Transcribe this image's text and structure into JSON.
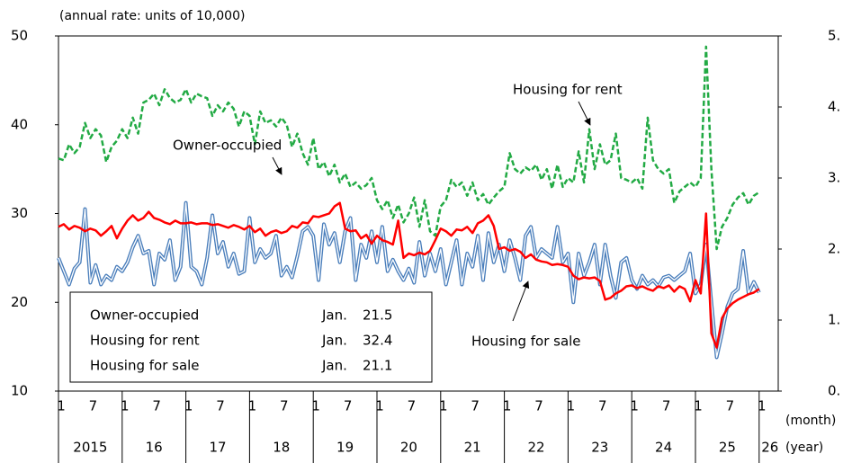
{
  "chart_data": {
    "type": "line",
    "axis_label": "(annual rate: units of 10,000)",
    "month_unit": "(month)",
    "year_unit": "(year)",
    "categories": [
      "1",
      null,
      null,
      null,
      null,
      null,
      "7",
      null,
      null,
      null,
      null,
      null,
      "1",
      null,
      null,
      null,
      null,
      null,
      "7",
      null,
      null,
      null,
      null,
      null,
      "1",
      null,
      null,
      null,
      null,
      null,
      "7",
      null,
      null,
      null,
      null,
      null,
      "1",
      null,
      null,
      null,
      null,
      null,
      "7",
      null,
      null,
      null,
      null,
      null,
      "1",
      null,
      null,
      null,
      null,
      null,
      "7",
      null,
      null,
      null,
      null,
      null,
      "1",
      null,
      null,
      null,
      null,
      null,
      "7",
      null,
      null,
      null,
      null,
      null,
      "1",
      null,
      null,
      null,
      null,
      null,
      "7",
      null,
      null,
      null,
      null,
      null,
      "1",
      null,
      null,
      null,
      null,
      null,
      "7",
      null,
      null,
      null,
      null,
      null,
      "1",
      null,
      null,
      null,
      null,
      null,
      "7",
      null,
      null,
      null,
      null,
      null,
      "1",
      null,
      null,
      null,
      null,
      null,
      "7",
      null,
      null,
      null,
      null,
      null,
      "1",
      null,
      null,
      null,
      null,
      null,
      "7",
      null,
      null,
      null,
      null,
      null,
      "1"
    ],
    "years": [
      "2015",
      "16",
      "17",
      "18",
      "19",
      "20",
      "21",
      "22",
      "23",
      "24",
      "25",
      "26"
    ],
    "ylim": [
      10,
      50
    ],
    "yticks": [
      10,
      20,
      30,
      40,
      50
    ],
    "y2lim": [
      0,
      5
    ],
    "y2ticks": [
      {
        "value": 0,
        "label": "0."
      },
      {
        "value": 1,
        "label": "1."
      },
      {
        "value": 2,
        "label": "2."
      },
      {
        "value": 3,
        "label": "3."
      },
      {
        "value": 4,
        "label": "4."
      },
      {
        "value": 5,
        "label": "5."
      }
    ],
    "latest_label": "Jan.",
    "series": [
      {
        "name": "Owner-occupied",
        "color": "#ff0000",
        "values": [
          28.5,
          28.8,
          28.2,
          28.6,
          28.4,
          28.0,
          28.3,
          28.1,
          27.5,
          28.0,
          28.6,
          27.2,
          28.3,
          29.2,
          29.8,
          29.2,
          29.5,
          30.2,
          29.5,
          29.3,
          29.0,
          28.8,
          29.2,
          28.9,
          28.9,
          29.0,
          28.8,
          28.9,
          28.9,
          28.7,
          28.8,
          28.6,
          28.4,
          28.7,
          28.5,
          28.2,
          28.6,
          27.9,
          28.3,
          27.5,
          27.9,
          28.1,
          27.8,
          28.0,
          28.6,
          28.4,
          29.0,
          28.9,
          29.7,
          29.6,
          29.8,
          30.0,
          30.8,
          31.2,
          28.3,
          28.0,
          28.1,
          27.2,
          27.6,
          26.6,
          27.5,
          27.0,
          26.8,
          26.5,
          29.2,
          25.0,
          25.5,
          25.3,
          25.6,
          25.4,
          25.8,
          27.0,
          28.3,
          28.0,
          27.5,
          28.2,
          28.1,
          28.5,
          27.8,
          28.9,
          29.2,
          29.8,
          28.6,
          26.0,
          26.2,
          25.8,
          26.0,
          25.7,
          25.0,
          25.4,
          24.8,
          24.6,
          24.5,
          24.2,
          24.3,
          24.2,
          24.0,
          23.0,
          22.6,
          22.8,
          22.7,
          22.8,
          22.4,
          20.3,
          20.5,
          21.0,
          21.3,
          21.8,
          21.9,
          21.6,
          21.8,
          21.5,
          21.3,
          21.8,
          21.6,
          21.9,
          21.2,
          21.8,
          21.5,
          20.1,
          22.5,
          21.0,
          30.0,
          16.5,
          14.9,
          18.2,
          19.3,
          19.9,
          20.3,
          20.6,
          20.9,
          21.1,
          21.5
        ]
      },
      {
        "name": "Housing for rent",
        "color": "#22aa44",
        "dashed": true,
        "values": [
          36.2,
          36.0,
          37.8,
          36.8,
          37.5,
          40.2,
          38.5,
          39.5,
          38.8,
          35.8,
          37.5,
          38.2,
          39.5,
          38.5,
          40.8,
          39.0,
          42.5,
          42.8,
          43.5,
          42.2,
          44.0,
          43.0,
          42.5,
          42.8,
          44.0,
          42.5,
          43.5,
          43.2,
          43.0,
          41.0,
          42.2,
          41.5,
          42.5,
          41.8,
          39.8,
          41.5,
          41.0,
          37.8,
          41.5,
          40.2,
          40.5,
          39.8,
          40.8,
          40.0,
          37.5,
          39.0,
          36.8,
          35.5,
          38.5,
          35.0,
          35.8,
          34.2,
          35.5,
          33.5,
          34.5,
          33.0,
          33.5,
          32.8,
          33.2,
          34.0,
          31.5,
          30.5,
          31.5,
          29.5,
          31.0,
          29.0,
          30.0,
          31.8,
          28.5,
          31.5,
          28.0,
          27.5,
          30.8,
          31.5,
          33.8,
          33.0,
          33.5,
          32.0,
          33.5,
          31.5,
          32.2,
          31.0,
          31.8,
          32.5,
          33.0,
          36.8,
          35.0,
          34.5,
          35.2,
          34.8,
          35.5,
          33.8,
          35.0,
          32.8,
          35.5,
          33.0,
          34.0,
          33.5,
          37.0,
          33.5,
          39.5,
          35.0,
          37.8,
          35.5,
          36.0,
          39.0,
          34.0,
          33.8,
          33.5,
          34.0,
          32.8,
          40.8,
          36.0,
          35.0,
          34.5,
          35.0,
          31.2,
          32.5,
          33.0,
          33.5,
          33.0,
          34.0,
          48.8,
          35.0,
          26.0,
          28.5,
          29.5,
          31.0,
          31.8,
          32.3,
          31.0,
          32.0,
          32.4
        ]
      },
      {
        "name": "Housing for sale",
        "color": "#4a7ebb",
        "double": true,
        "values": [
          25.0,
          23.5,
          22.0,
          23.8,
          24.5,
          30.5,
          22.2,
          24.2,
          22.0,
          23.0,
          22.5,
          24.0,
          23.5,
          24.5,
          26.2,
          27.5,
          25.5,
          25.8,
          22.0,
          25.5,
          24.8,
          27.0,
          22.5,
          24.0,
          31.2,
          24.0,
          23.5,
          22.0,
          25.0,
          29.8,
          25.5,
          26.8,
          24.0,
          25.5,
          23.2,
          23.5,
          29.5,
          24.5,
          26.0,
          25.0,
          25.5,
          27.5,
          23.0,
          24.0,
          22.8,
          25.2,
          28.0,
          28.5,
          27.5,
          22.5,
          28.8,
          26.5,
          27.8,
          24.5,
          28.0,
          29.5,
          22.5,
          26.5,
          25.0,
          28.0,
          24.5,
          28.5,
          23.5,
          24.8,
          23.5,
          22.5,
          23.8,
          22.2,
          26.8,
          23.0,
          25.5,
          23.5,
          26.0,
          22.0,
          24.5,
          27.0,
          22.0,
          25.5,
          24.0,
          27.5,
          22.5,
          27.8,
          24.5,
          26.5,
          23.5,
          27.0,
          25.0,
          22.5,
          27.5,
          28.5,
          25.0,
          26.0,
          25.5,
          25.0,
          28.5,
          24.5,
          25.5,
          20.0,
          25.5,
          23.0,
          24.5,
          26.5,
          22.0,
          26.5,
          23.0,
          20.5,
          24.5,
          25.0,
          22.5,
          21.5,
          23.0,
          22.0,
          22.5,
          21.8,
          22.8,
          23.0,
          22.5,
          23.0,
          23.5,
          25.5,
          21.0,
          22.0,
          26.5,
          20.0,
          13.8,
          16.5,
          19.5,
          21.0,
          21.5,
          25.8,
          21.0,
          22.3,
          21.1
        ]
      }
    ]
  }
}
